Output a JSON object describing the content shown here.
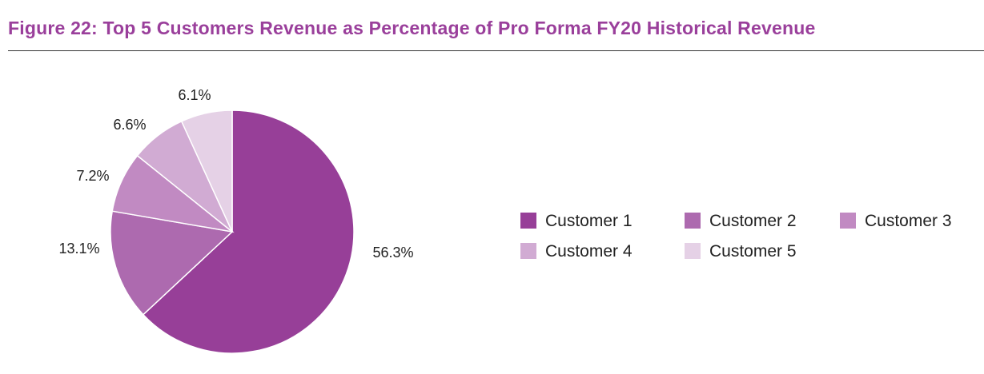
{
  "figure": {
    "title": "Figure 22: Top 5 Customers Revenue as Percentage of Pro Forma FY20 Historical Revenue"
  },
  "colors": {
    "title": "#9a3f9b",
    "rule": "#333333",
    "series": [
      "#973f98",
      "#ad6aaf",
      "#c18ac2",
      "#d1abd3",
      "#e5d1e6"
    ]
  },
  "chart_data": {
    "type": "pie",
    "title": "Top 5 Customers Revenue as Percentage of Pro Forma FY20 Historical Revenue",
    "start_angle": "12 o'clock",
    "direction": "clockwise",
    "legend_position": "right",
    "slices": [
      {
        "label": "Customer 1",
        "value": 56.3,
        "value_label": "56.3%"
      },
      {
        "label": "Customer 2",
        "value": 13.1,
        "value_label": "13.1%"
      },
      {
        "label": "Customer 3",
        "value": 7.2,
        "value_label": "7.2%"
      },
      {
        "label": "Customer 4",
        "value": 6.6,
        "value_label": "6.6%"
      },
      {
        "label": "Customer 5",
        "value": 6.1,
        "value_label": "6.1%"
      }
    ]
  }
}
